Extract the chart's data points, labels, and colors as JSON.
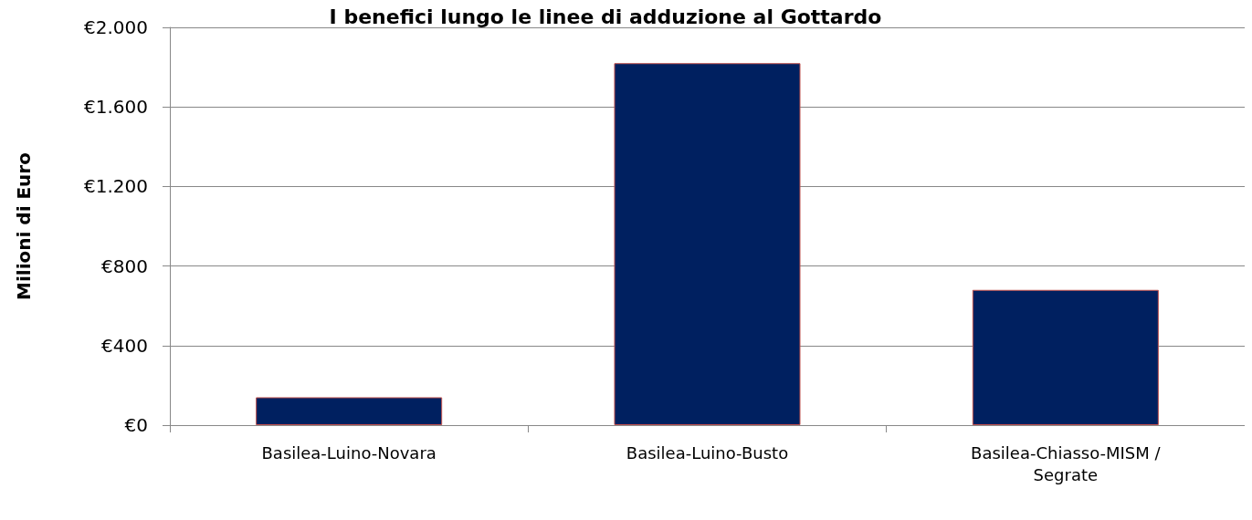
{
  "chart_data": {
    "type": "bar",
    "title": "I benefici lungo le linee di adduzione al Gottardo",
    "ylabel": "Milioni di Euro",
    "categories": [
      "Basilea-Luino-Novara",
      "Basilea-Luino-Busto",
      "Basilea-Chiasso-MISM / Segrate"
    ],
    "values": [
      140,
      1820,
      680
    ],
    "color": "#002060",
    "ylim": [
      0,
      2000
    ],
    "yticks": [
      {
        "value": 0,
        "label": "€0"
      },
      {
        "value": 400,
        "label": "€400"
      },
      {
        "value": 800,
        "label": "€800"
      },
      {
        "value": 1200,
        "label": "€1.200"
      },
      {
        "value": 1600,
        "label": "€1.600"
      },
      {
        "value": 2000,
        "label": "€2.000"
      }
    ],
    "grid": "y"
  }
}
